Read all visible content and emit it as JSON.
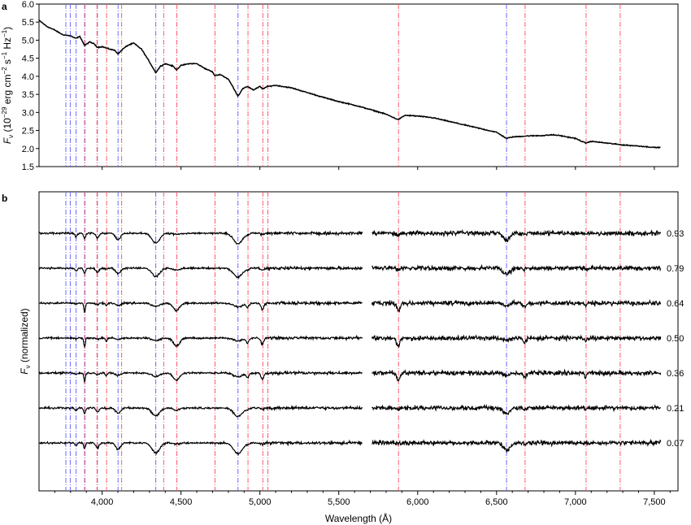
{
  "figure": {
    "panel_a_letter": "a",
    "panel_b_letter": "b",
    "x_axis_title": "Wavelength (Å)",
    "panel_a_y_title_prefix": "F",
    "panel_a_y_title_sub": "ν",
    "panel_a_y_title_rest": " (10",
    "panel_a_y_title_exp1": "−29",
    "panel_a_y_title_mid1": " erg cm",
    "panel_a_y_title_exp2": "−2",
    "panel_a_y_title_mid2": " s",
    "panel_a_y_title_exp3": "−1",
    "panel_a_y_title_mid3": " Hz",
    "panel_a_y_title_exp4": "−1",
    "panel_a_y_title_end": ")",
    "panel_b_y_title_prefix": "F",
    "panel_b_y_title_sub": "ν",
    "panel_b_y_title_rest": " (normalized)"
  },
  "chart_data": [
    {
      "type": "line",
      "panel": "a",
      "title": "",
      "xlabel": "",
      "ylabel": "Fν (10−29 erg cm−2 s−1 Hz−1)",
      "xlim": [
        3600,
        7650
      ],
      "ylim": [
        1.5,
        6.0
      ],
      "y_ticks": [
        "1.5",
        "2.0",
        "2.5",
        "3.0",
        "3.5",
        "4.0",
        "4.5",
        "5.0",
        "5.5",
        "6.0"
      ],
      "y_tick_values": [
        1.5,
        2.0,
        2.5,
        3.0,
        3.5,
        4.0,
        4.5,
        5.0,
        5.5,
        6.0
      ],
      "series": [
        {
          "x": [
            3600,
            3650,
            3700,
            3750,
            3800,
            3830,
            3860,
            3889,
            3920,
            3950,
            3970,
            4000,
            4050,
            4080,
            4101,
            4130,
            4160,
            4200,
            4250,
            4300,
            4340,
            4370,
            4400,
            4450,
            4471,
            4500,
            4550,
            4600,
            4650,
            4700,
            4713,
            4750,
            4800,
            4830,
            4861,
            4890,
            4922,
            4960,
            5000,
            5016,
            5050,
            5100,
            5200,
            5300,
            5400,
            5500,
            5600,
            5700,
            5800,
            5876,
            5920,
            6000,
            6100,
            6200,
            6300,
            6400,
            6500,
            6563,
            6600,
            6700,
            6800,
            6850,
            6900,
            6950,
            7000,
            7065,
            7100,
            7200,
            7300,
            7400,
            7500,
            7540
          ],
          "y": [
            5.55,
            5.38,
            5.28,
            5.15,
            5.12,
            5.05,
            5.1,
            4.85,
            4.95,
            4.9,
            4.8,
            4.82,
            4.75,
            4.72,
            4.62,
            4.75,
            4.85,
            4.92,
            4.75,
            4.4,
            4.1,
            4.28,
            4.35,
            4.28,
            4.18,
            4.3,
            4.35,
            4.35,
            4.22,
            4.12,
            4.02,
            4.05,
            3.92,
            3.7,
            3.45,
            3.65,
            3.72,
            3.62,
            3.72,
            3.65,
            3.72,
            3.75,
            3.68,
            3.55,
            3.42,
            3.3,
            3.2,
            3.08,
            2.95,
            2.8,
            2.92,
            2.9,
            2.85,
            2.75,
            2.65,
            2.55,
            2.45,
            2.28,
            2.32,
            2.35,
            2.36,
            2.38,
            2.36,
            2.32,
            2.28,
            2.15,
            2.2,
            2.15,
            2.1,
            2.07,
            2.03,
            2.03
          ]
        }
      ]
    },
    {
      "type": "line",
      "panel": "b",
      "title": "",
      "xlabel": "Wavelength (Å)",
      "ylabel": "Fν (normalized)",
      "xlim": [
        3600,
        7650
      ],
      "x_ticks": [
        "4,000",
        "4,500",
        "5,000",
        "5,500",
        "6,000",
        "6,500",
        "7,000",
        "7,500"
      ],
      "x_tick_values": [
        4000,
        4500,
        5000,
        5500,
        6000,
        6500,
        7000,
        7500
      ],
      "gap": [
        5650,
        5710
      ],
      "series": [
        {
          "name": "0.93",
          "offset": 6,
          "h_strength": 1.0,
          "he_strength": 0.15
        },
        {
          "name": "0.79",
          "offset": 5,
          "h_strength": 0.85,
          "he_strength": 0.25
        },
        {
          "name": "0.64",
          "offset": 4,
          "h_strength": 0.35,
          "he_strength": 0.9
        },
        {
          "name": "0.50",
          "offset": 3,
          "h_strength": 0.25,
          "he_strength": 1.0
        },
        {
          "name": "0.36",
          "offset": 2,
          "h_strength": 0.35,
          "he_strength": 0.9
        },
        {
          "name": "0.21",
          "offset": 1,
          "h_strength": 0.8,
          "he_strength": 0.3
        },
        {
          "name": "0.07",
          "offset": 0,
          "h_strength": 1.0,
          "he_strength": 0.15
        }
      ]
    }
  ],
  "reference_lines": {
    "hydrogen_color": "#6a6aff",
    "helium_color": "#ff5a6e",
    "hydrogen": [
      3770,
      3798,
      3835,
      3889,
      3970,
      4101,
      4340,
      4861,
      6563
    ],
    "helium": [
      3889,
      3965,
      4026,
      4121,
      4388,
      4471,
      4713,
      4922,
      5016,
      5048,
      5876,
      6678,
      7065,
      7281
    ]
  }
}
